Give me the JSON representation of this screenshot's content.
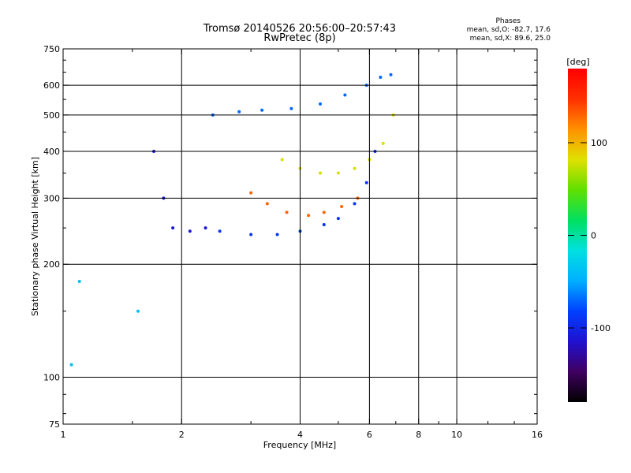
{
  "chart_data": {
    "type": "scatter",
    "title": "Tromsø 20140526 20:56:00–20:57:43",
    "subtitle": "RwPretec (8p)",
    "xlabel": "Frequency [MHz]",
    "ylabel": "Stationary phase Virtual Height [km]",
    "x_scale": "log",
    "y_scale": "log",
    "xlim": [
      1,
      16
    ],
    "ylim": [
      75,
      750
    ],
    "x_ticks": [
      1,
      2,
      4,
      6,
      8,
      10,
      16
    ],
    "x_tick_labels": [
      "1",
      "2",
      "4",
      "6",
      "8",
      "10",
      "16"
    ],
    "y_ticks": [
      75,
      100,
      200,
      300,
      400,
      500,
      600,
      750
    ],
    "y_tick_labels": [
      "75",
      "100",
      "200",
      "300",
      "400",
      "500",
      "600",
      "750"
    ],
    "x_minor_ticks": [
      1.5,
      3,
      5,
      7,
      9,
      12,
      14
    ],
    "y_minor_ticks": [
      80,
      90,
      150,
      250,
      350,
      450,
      550,
      650,
      700
    ],
    "x_grid": [
      2,
      4,
      6,
      8,
      10
    ],
    "y_grid": [
      100,
      200,
      300,
      400,
      500,
      600
    ],
    "grid": true,
    "stats": {
      "header": "Phases",
      "line_o": "mean, sd,O: -82.7, 17.6",
      "line_x": "mean, sd,X:  89.6, 25.0"
    },
    "colorbar": {
      "label": "[deg]",
      "min": -180,
      "max": 180,
      "ticks": [
        100,
        0,
        -100
      ],
      "tick_labels": [
        "100",
        "0",
        "-100"
      ],
      "stops": [
        "#000000",
        "#400060",
        "#2010d0",
        "#0040ff",
        "#00b0ff",
        "#00e0e0",
        "#00e060",
        "#60e000",
        "#e0e000",
        "#ff9000",
        "#ff3000",
        "#ff0000"
      ]
    },
    "series": [
      {
        "x": [
          1.05,
          1.1,
          1.55
        ],
        "y": [
          108,
          180,
          150
        ],
        "phase": -40
      },
      {
        "x": [
          1.7,
          1.8,
          1.9,
          2.1,
          2.3
        ],
        "y": [
          400,
          300,
          250,
          245,
          250
        ],
        "phase": -110
      },
      {
        "x": [
          2.5,
          3.0,
          3.5,
          4.0,
          4.6,
          5.0,
          5.5,
          5.9,
          6.2
        ],
        "y": [
          245,
          240,
          240,
          245,
          255,
          265,
          290,
          330,
          400
        ],
        "phase": -90
      },
      {
        "x": [
          2.4,
          2.8,
          3.2,
          3.8,
          4.5,
          5.2,
          5.9,
          6.4,
          6.8
        ],
        "y": [
          500,
          510,
          515,
          520,
          535,
          565,
          600,
          630,
          640
        ],
        "phase": -70
      },
      {
        "x": [
          3.0,
          3.3,
          3.7,
          4.2,
          4.6,
          5.1,
          5.6
        ],
        "y": [
          310,
          290,
          275,
          270,
          275,
          285,
          300
        ],
        "phase": 130
      },
      {
        "x": [
          3.6,
          4.0,
          4.5,
          5.0,
          5.5,
          6.0,
          6.5,
          6.9
        ],
        "y": [
          380,
          360,
          350,
          350,
          360,
          380,
          420,
          500
        ],
        "phase": 80
      }
    ]
  }
}
